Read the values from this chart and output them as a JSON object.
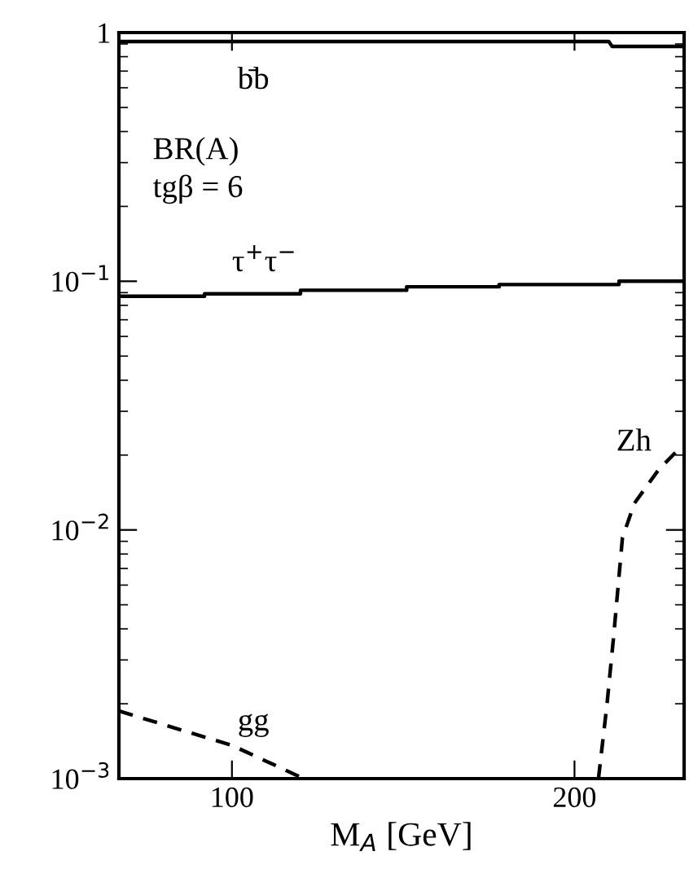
{
  "chart_data": {
    "type": "line",
    "xlabel": "M$_{A}$ [GeV]",
    "xlim": [
      67,
      232
    ],
    "xticks": [
      100,
      200
    ],
    "ylim": [
      0.001,
      1
    ],
    "log": "y",
    "yticks": [
      {
        "value": 0.001,
        "label": "10$^{−3}$"
      },
      {
        "value": 0.01,
        "label": "10$^{−2}$"
      },
      {
        "value": 0.1,
        "label": "10$^{−1}$"
      },
      1
    ],
    "grid": false,
    "legend": false,
    "marker": "none",
    "series": [
      {
        "color": "#000000",
        "line_style": "solid",
        "x": [
          67,
          210,
          211,
          232
        ],
        "values": [
          0.92,
          0.92,
          0.88,
          0.88
        ]
      },
      {
        "color": "#000000",
        "line_style": "solid",
        "x": [
          67,
          92,
          92,
          120,
          120,
          151,
          151,
          178,
          178,
          213,
          213,
          232
        ],
        "values": [
          0.087,
          0.087,
          0.089,
          0.089,
          0.092,
          0.092,
          0.095,
          0.095,
          0.097,
          0.097,
          0.1,
          0.1
        ]
      },
      {
        "color": "#000000",
        "line_style": "dashed",
        "x": [
          67,
          100,
          121
        ],
        "values": [
          0.00187,
          0.00136,
          0.001
        ]
      },
      {
        "color": "#000000",
        "line_style": "dashed",
        "x": [
          207,
          209.5,
          211.4,
          214,
          217.5,
          224.6,
          231
        ],
        "values": [
          0.001,
          0.002,
          0.0037,
          0.0093,
          0.0128,
          0.0175,
          0.0215
        ]
      }
    ],
    "annotations": [
      "b̄b",
      "BR(A)\ntgβ = 6",
      "τ$^{+}$τ$^{−}$",
      "Zh",
      "gg"
    ]
  }
}
